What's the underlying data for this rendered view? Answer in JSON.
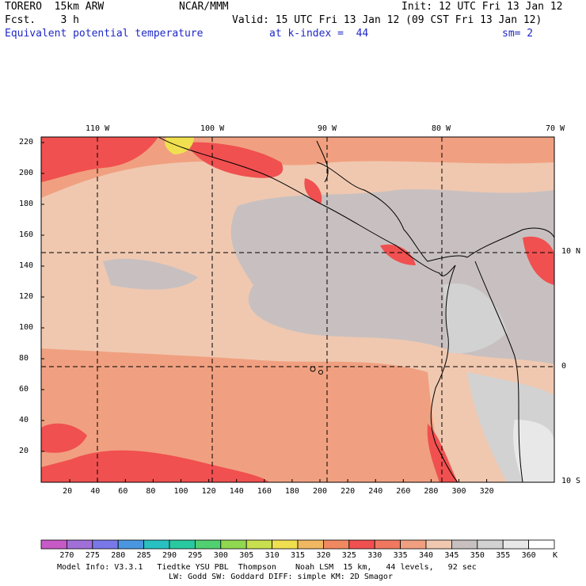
{
  "header": {
    "model": "TORERO  15km ARW",
    "center": "NCAR/MMM",
    "init": "Init: 12 UTC Fri 13 Jan 12",
    "fcst": "Fcst.    3 h",
    "valid": "Valid: 15 UTC Fri 13 Jan 12 (09 CST Fri 13 Jan 12)",
    "field": "Equivalent potential temperature",
    "level": "at k-index =  44",
    "smoothing": "sm= 2"
  },
  "axes": {
    "top_lon": [
      "110 W",
      "100 W",
      "90 W",
      "80 W",
      "70 W"
    ],
    "right_lat": [
      "10 N",
      "0",
      "10 S"
    ],
    "left_y": [
      "220",
      "200",
      "180",
      "160",
      "140",
      "120",
      "100",
      "80",
      "60",
      "40",
      "20"
    ],
    "bottom_x": [
      "20",
      "40",
      "60",
      "80",
      "100",
      "120",
      "140",
      "160",
      "180",
      "200",
      "220",
      "240",
      "260",
      "280",
      "300",
      "320"
    ]
  },
  "colorbar": {
    "unit": "K",
    "levels": [
      "270",
      "275",
      "280",
      "285",
      "290",
      "295",
      "300",
      "305",
      "310",
      "315",
      "320",
      "325",
      "330",
      "335",
      "340",
      "345",
      "350",
      "355",
      "360"
    ],
    "colors": [
      "#c85ac8",
      "#a070d8",
      "#7a78e8",
      "#4a96e0",
      "#28c0c0",
      "#28c8a0",
      "#50d070",
      "#90d850",
      "#c8e050",
      "#f0e050",
      "#f0b860",
      "#f08860",
      "#f05050",
      "#f07860",
      "#f0a080",
      "#f0c8b0",
      "#c8c0c0",
      "#d2d2d2",
      "#e8e8e8",
      "#ffffff"
    ]
  },
  "footer": {
    "line1": "Model Info: V3.3.1   Tiedtke YSU PBL  Thompson    Noah LSM  15 km,   44 levels,   92 sec",
    "line2": "LW: Godd SW: Goddard DIFF: simple KM: 2D Smagor"
  }
}
